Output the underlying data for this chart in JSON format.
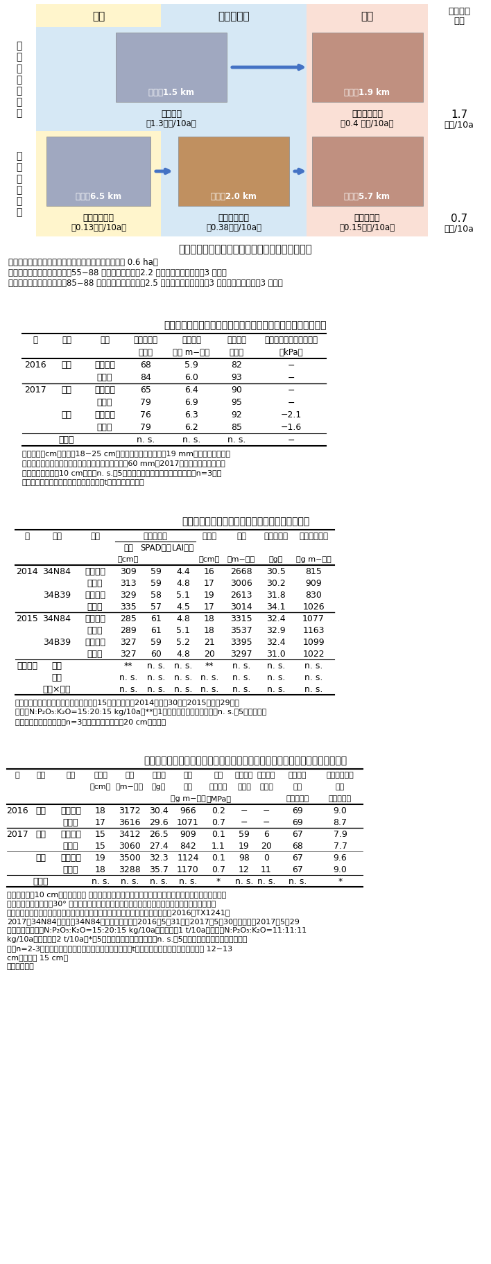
{
  "fig1_title": "図１　ロータリ耕体系およびプラウ耕体系の概要",
  "fig1_caption_lines": [
    "圃場区画：ロータリ耕体系およびプラウ耕体系ともに 0.6 ha。",
    "ロータリ耕体系：トラクタ；55−88 馬力、ロータリ；2.2 ｍ幅、目皿式播種機；3 ｍ幅。",
    "プラウ耕体系：トラクタ；85−88 馬力、チゼルプラウ；2.5 ｍ幅、パワーハロー；3 ｍ幅、真空播種機；3 ｍ幅。"
  ],
  "bg_rotary": "#FFF5CC",
  "bg_seedbed": "#D6E8F5",
  "bg_seeding": "#FAE0D6",
  "arrow_color": "#4472C4",
  "table1_title": "表１　砕土率、苗立ち数、苗立ち率および土壌水ポテンシャル",
  "table1_h1": [
    "年",
    "場所",
    "耕起",
    "砕土率１）",
    "苗立ち数",
    "苗立ち率",
    "土壌水ポテンシャル２）"
  ],
  "table1_h2": [
    "",
    "",
    "",
    "（％）",
    "（本 m−２）",
    "（％）",
    "（kPa）"
  ],
  "table1_data": [
    [
      "2016",
      "盛岡",
      "ロータリ",
      "68",
      "5.9",
      "82",
      "−"
    ],
    [
      "",
      "",
      "プラウ",
      "84",
      "6.0",
      "93",
      "−"
    ],
    [
      "2017",
      "盛岡",
      "ロータリ",
      "65",
      "6.4",
      "90",
      "−"
    ],
    [
      "",
      "",
      "プラウ",
      "79",
      "6.9",
      "95",
      "−"
    ],
    [
      "",
      "花巻",
      "ロータリ",
      "76",
      "6.3",
      "92",
      "−2.1"
    ],
    [
      "",
      "",
      "プラウ",
      "79",
      "6.2",
      "85",
      "−1.6"
    ],
    [
      "",
      "ｔ検定",
      "",
      "n. s.",
      "n. s.",
      "n. s.",
      "−"
    ]
  ],
  "table1_footnotes": [
    "１）表層５cmの土壌（18−25 cm四方）を採取し、目開き19 mmの網でふるい分け",
    "し、ふるいを通過した土塊の重量割合。２）降水量60 mm（2017年７月３日）の２日後",
    "における土壌深さ10 cmの値。n. s.は5％水準で有意差がないことを示す（n=3）。",
    "統計処理は、年を反復として対応のあるt検定で実施した。"
  ],
  "table2_title": "表２　子実用トウモロコシの生育および子実収量",
  "table2_h1": [
    "年",
    "品種",
    "耕起",
    "絹糸抽出期",
    "",
    "",
    "雌穂長",
    "粒数",
    "百粒重３）",
    "子実収量３）"
  ],
  "table2_h2": [
    "",
    "",
    "",
    "草高",
    "SPAD１）",
    "LAI２）",
    "",
    "",
    "",
    ""
  ],
  "table2_h3": [
    "",
    "",
    "",
    "（cm）",
    "",
    "",
    "（cm）",
    "（m−２）",
    "（g）",
    "（g m−２）"
  ],
  "table2_data": [
    [
      "2014",
      "34N84",
      "ロータリ",
      "309",
      "59",
      "4.4",
      "16",
      "2668",
      "30.5",
      "815"
    ],
    [
      "",
      "",
      "プラウ",
      "313",
      "59",
      "4.8",
      "17",
      "3006",
      "30.2",
      "909"
    ],
    [
      "",
      "34B39",
      "ロータリ",
      "329",
      "58",
      "5.1",
      "19",
      "2613",
      "31.8",
      "830"
    ],
    [
      "",
      "",
      "プラウ",
      "335",
      "57",
      "4.5",
      "17",
      "3014",
      "34.1",
      "1026"
    ],
    [
      "2015",
      "34N84",
      "ロータリ",
      "285",
      "61",
      "4.8",
      "18",
      "3315",
      "32.4",
      "1077"
    ],
    [
      "",
      "",
      "プラウ",
      "289",
      "61",
      "5.1",
      "18",
      "3537",
      "32.9",
      "1163"
    ],
    [
      "",
      "34B39",
      "ロータリ",
      "327",
      "59",
      "5.2",
      "21",
      "3395",
      "32.4",
      "1099"
    ],
    [
      "",
      "",
      "プラウ",
      "327",
      "60",
      "4.8",
      "20",
      "3297",
      "31.0",
      "1022"
    ],
    [
      "分散分析",
      "品種",
      "",
      "**",
      "n. s.",
      "n. s.",
      "**",
      "n. s.",
      "n. s.",
      "n. s."
    ],
    [
      "",
      "耕起",
      "",
      "n. s.",
      "n. s.",
      "n. s.",
      "n. s.",
      "n. s.",
      "n. s.",
      "n. s."
    ],
    [
      "",
      "品種×耕起",
      "",
      "n. s.",
      "n. s.",
      "n. s.",
      "n. s.",
      "n. s.",
      "n. s.",
      "n. s."
    ]
  ],
  "table2_footnotes": [
    "１）葉色値、２）葉面積指数、３）水分15％。播種日：2014年５月30日、2015年５月29日。",
    "施肥：N:P₂O₅:K₂O=15:20:15 kg/10a。**は1％水準で有意であること、n. s.は5％水準で有",
    "意差がないことを示す（n=3）。耕深はいずれも20 cmとした。"
  ],
  "table3_title": "表３　子実用トウモロコシの子実収量　土壌硬度　倒伏　折損および飼料品質",
  "table3_h1": [
    "年",
    "場所",
    "耕起",
    "雌穂長",
    "粒数",
    "百粒重",
    "子実",
    "土壌",
    "倒伏２）",
    "折損３）",
    "デンプン",
    "粗タンパク質"
  ],
  "table3_h2": [
    "",
    "",
    "",
    "（cm）",
    "（m−２）",
    "（g）",
    "収量",
    "硬度１）",
    "（％）",
    "（％）",
    "含量",
    "含量"
  ],
  "table3_h3": [
    "",
    "",
    "",
    "",
    "",
    "",
    "（g m−２）",
    "（MPa）",
    "",
    "",
    "（乾物％）",
    "（乾物％）"
  ],
  "table3_data": [
    [
      "2016",
      "盛岡",
      "ロータリ",
      "18",
      "3172",
      "30.4",
      "966",
      "0.2",
      "−",
      "−",
      "69",
      "9.0"
    ],
    [
      "",
      "",
      "プラウ",
      "17",
      "3616",
      "29.6",
      "1071",
      "0.7",
      "−",
      "−",
      "69",
      "8.7"
    ],
    [
      "2017",
      "盛岡",
      "ロータリ",
      "15",
      "3412",
      "26.5",
      "909",
      "0.1",
      "59",
      "6",
      "67",
      "7.9"
    ],
    [
      "",
      "",
      "プラウ",
      "15",
      "3060",
      "27.4",
      "842",
      "1.1",
      "19",
      "20",
      "68",
      "7.7"
    ],
    [
      "",
      "花巻",
      "ロータリ",
      "19",
      "3500",
      "32.3",
      "1124",
      "0.1",
      "98",
      "0",
      "67",
      "9.6"
    ],
    [
      "",
      "",
      "プラウ",
      "18",
      "3288",
      "35.7",
      "1170",
      "0.7",
      "12",
      "11",
      "67",
      "9.0"
    ],
    [
      "",
      "ｔ検定",
      "",
      "n. s.",
      "n. s.",
      "n. s.",
      "n. s.",
      "*",
      "n. s.",
      "n. s.",
      "n. s.",
      "*"
    ]
  ],
  "table3_footnotes": [
    "１）土壌深さ10 cmの貫入抵抗値 ．２）調査区における主稈の地際から最上位雌穂着生節まで引いた",
    "直線の角度が垂直から30° 以上傾いた個体の割合．３）調査区における主稈の地際から最上位雌穂",
    "着生節の直上節間以下の折損個体とし虫害によらない個体の割合．品種：盛岡；2016年TX1241、",
    "2017年34N84、花巻；34N84．播種日：盛岡；2016年5月31日、2017年5月30日、花巻；2017年5月29",
    "日。施肥：盛岡；N:P₂O₅:K₂O=15:20:15 kg/10a、牛糞堆肥1 t/10a。花巻；N:P₂O₅:K₂O=11:11:11",
    "kg/10a、豚糞堆肥2 t/10a。*は5％水準で有意であること、n. s.は5％水準で有意差がないことを示",
    "す（n=2-3）。統計処理は、年を反復として対応のあるt検定で実施した。耕深；ロータリ 12−13",
    "cm、プラウ 15 cm。",
    "（篠遠善哉）"
  ]
}
